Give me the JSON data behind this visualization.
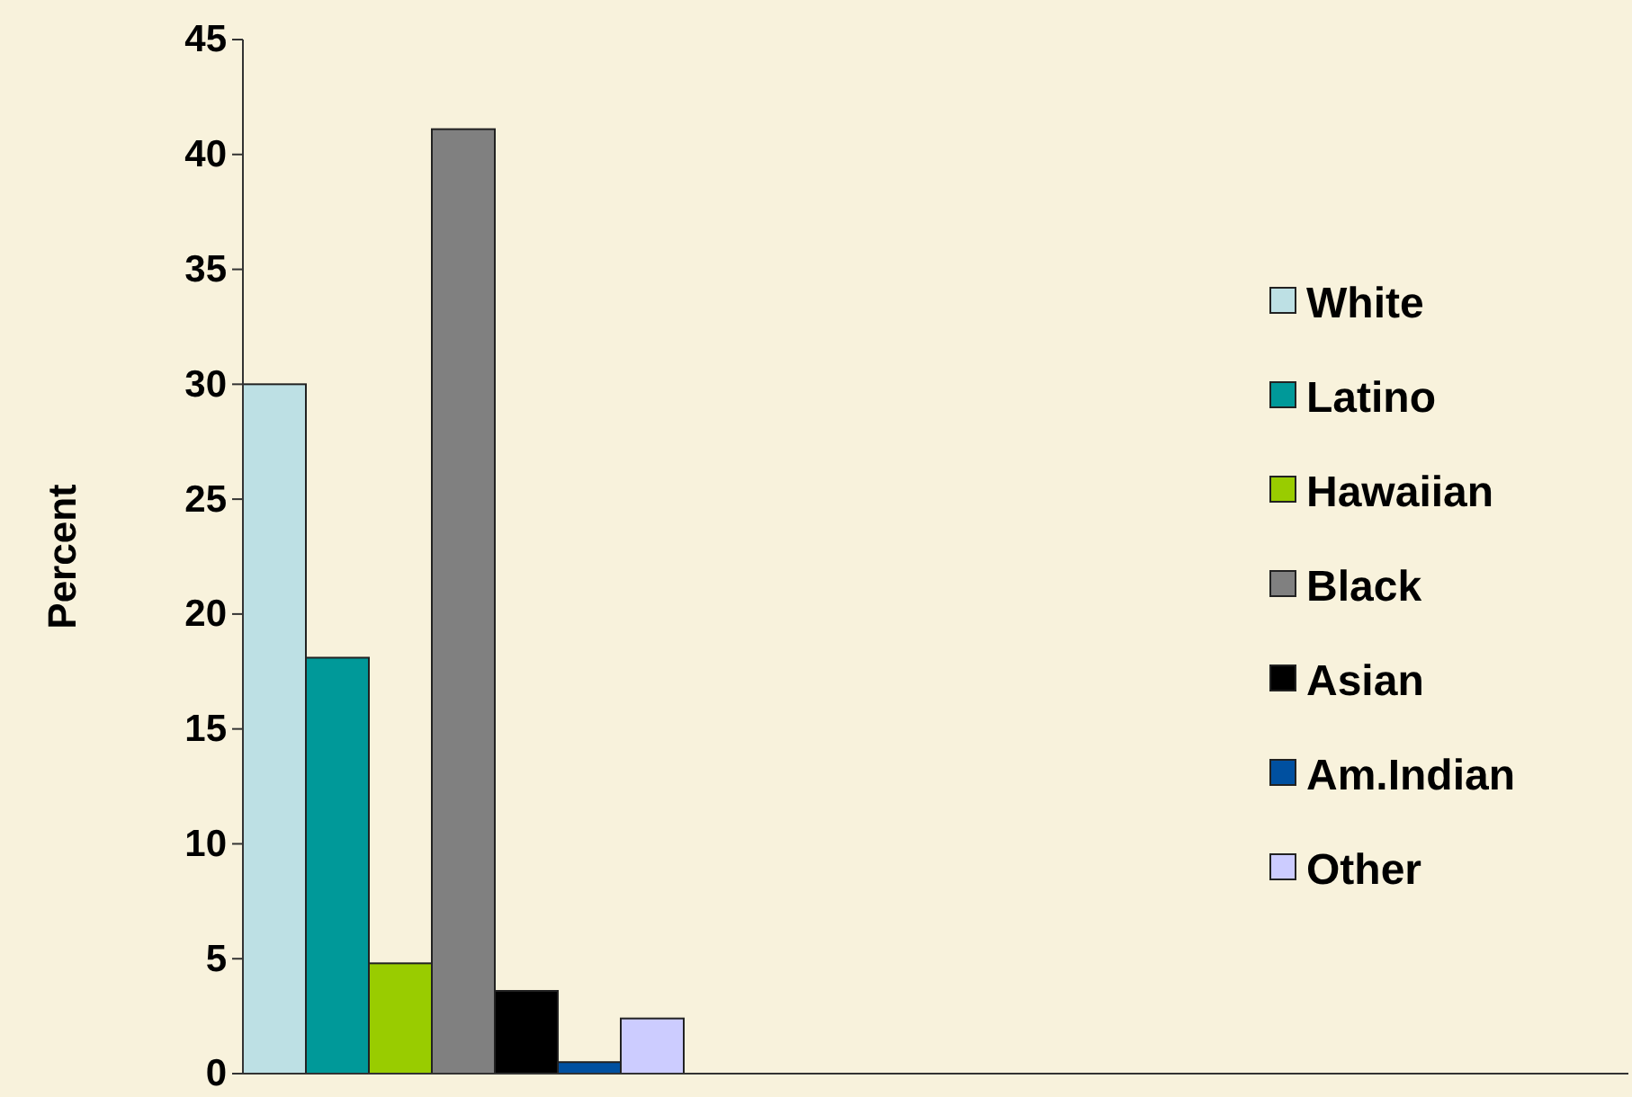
{
  "chart_data": {
    "type": "bar",
    "ylabel": "Percent",
    "categories": [
      null
    ],
    "series": [
      {
        "name": "White",
        "color": "#bde0e4",
        "values": [
          30
        ]
      },
      {
        "name": "Latino",
        "color": "#009999",
        "values": [
          18.1
        ]
      },
      {
        "name": "Hawaiian",
        "color": "#99cc00",
        "values": [
          4.8
        ]
      },
      {
        "name": "Black",
        "color": "#808080",
        "values": [
          41.1
        ]
      },
      {
        "name": "Asian",
        "color": "#000000",
        "values": [
          3.6
        ]
      },
      {
        "name": "Am.Indian",
        "color": "#0050a0",
        "values": [
          0.5
        ]
      },
      {
        "name": "Other",
        "color": "#ccccff",
        "values": [
          2.4
        ]
      }
    ],
    "ylim": [
      0,
      45
    ],
    "yticks": [
      0,
      5,
      10,
      15,
      20,
      25,
      30,
      35,
      40,
      45
    ],
    "legend": "right"
  }
}
